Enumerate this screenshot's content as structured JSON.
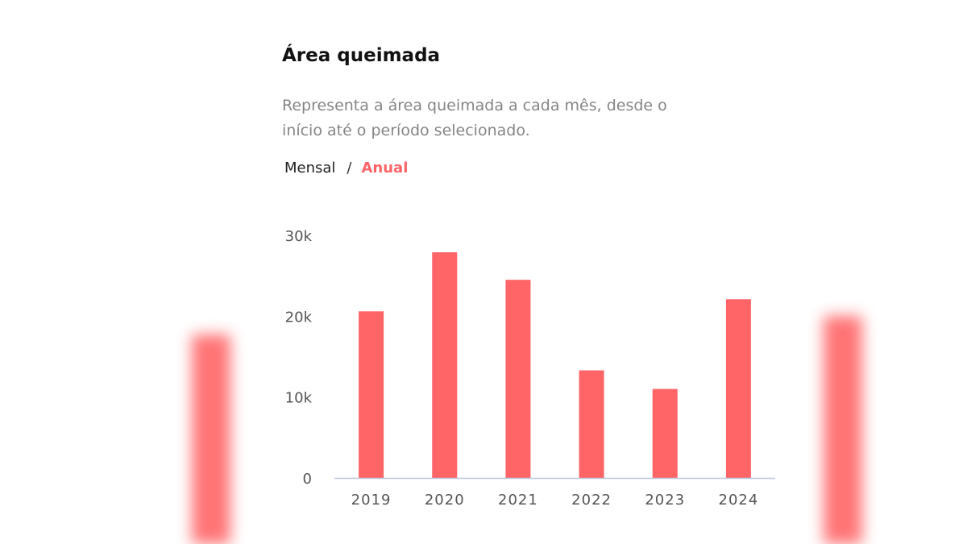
{
  "background": {
    "accent": "#ff6567"
  },
  "card": {
    "title": "Área queimada",
    "description": "Representa a área queimada a cada mês, desde o início até o período selecionado.",
    "toggle": {
      "monthly": "Mensal",
      "separator": "/",
      "annual": "Anual",
      "active": "annual"
    }
  },
  "chart_data": {
    "type": "bar",
    "categories": [
      "2019",
      "2020",
      "2021",
      "2022",
      "2023",
      "2024"
    ],
    "values": [
      20600,
      27900,
      24500,
      13300,
      11000,
      22100
    ],
    "ylim": [
      0,
      30000
    ],
    "yticks": [
      0,
      10000,
      20000,
      30000
    ],
    "ytick_labels": [
      "0",
      "10k",
      "20k",
      "30k"
    ],
    "grid": false,
    "bar_color": "#ff6567",
    "axis_color": "#b8c6de"
  }
}
